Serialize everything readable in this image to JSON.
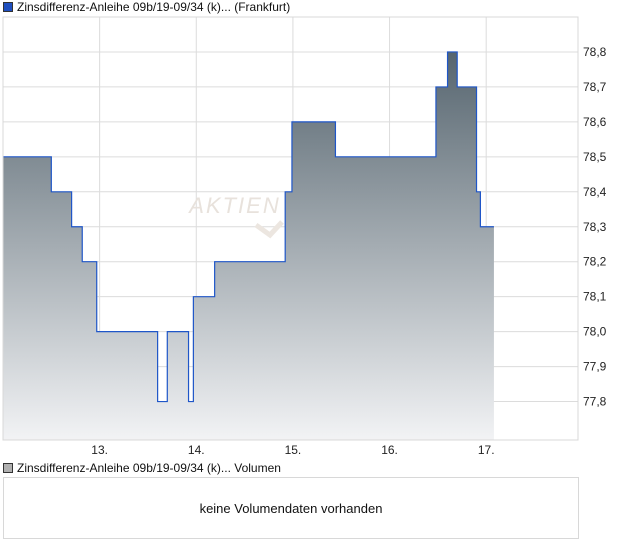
{
  "price_legend": {
    "label": "Zinsdifferenz-Anleihe 09b/19-09/34 (k)... (Frankfurt)",
    "color": "#1f4fbf"
  },
  "volume_legend": {
    "label": "Zinsdifferenz-Anleihe 09b/19-09/34 (k)... Volumen",
    "color": "#b0b0b0"
  },
  "volume_message": "keine Volumendaten vorhanden",
  "watermark": "AKTIEN",
  "chart_data": {
    "type": "area",
    "step": true,
    "xlim": [
      12.0,
      17.95
    ],
    "ylim": [
      77.69,
      78.9
    ],
    "grid": true,
    "y_axis_side": "right",
    "x_ticks": [
      13,
      14,
      15,
      16,
      17
    ],
    "x_tick_labels": [
      "13.",
      "14.",
      "15.",
      "16.",
      "17."
    ],
    "y_ticks": [
      77.8,
      77.9,
      78.0,
      78.1,
      78.2,
      78.3,
      78.4,
      78.5,
      78.6,
      78.7,
      78.8
    ],
    "y_tick_labels": [
      "77,8",
      "77,9",
      "78,0",
      "78,1",
      "78,2",
      "78,3",
      "78,4",
      "78,5",
      "78,6",
      "78,7",
      "78,8"
    ],
    "line_color": "#1f56c8",
    "fill_top_color": "#56656f",
    "fill_bottom_color": "#f2f3f5",
    "series": [
      {
        "x": [
          12.0,
          12.5,
          12.71,
          12.82,
          12.97,
          13.6,
          13.7,
          13.92,
          13.97,
          14.19,
          14.92,
          14.99,
          15.44,
          16.48,
          16.6,
          16.7,
          16.9,
          16.94,
          16.98,
          17.08
        ],
        "y": [
          78.5,
          78.4,
          78.3,
          78.2,
          78.0,
          77.8,
          78.0,
          77.8,
          78.1,
          78.2,
          78.4,
          78.6,
          78.5,
          78.7,
          78.8,
          78.7,
          78.4,
          78.3,
          78.3,
          78.3
        ]
      }
    ]
  }
}
